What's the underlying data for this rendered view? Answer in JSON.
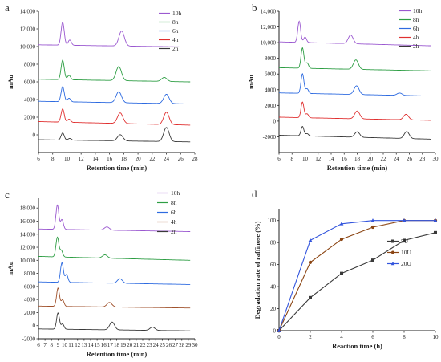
{
  "chart_data": [
    {
      "id": "a",
      "panel_label": "a",
      "type": "line",
      "xlabel": "Retention time (min)",
      "ylabel": "mAu",
      "xlim": [
        6,
        28
      ],
      "xticks": [
        6,
        8,
        10,
        12,
        14,
        16,
        18,
        20,
        22,
        24,
        26,
        28
      ],
      "ylim": [
        -2000,
        14000
      ],
      "yticks": [
        0,
        2000,
        4000,
        6000,
        8000,
        10000,
        12000,
        14000
      ],
      "ytick_labels": [
        "0",
        "2000",
        "4000",
        "6000",
        "8000",
        "10,000",
        "12,000",
        "14,000"
      ],
      "legend_position": "top-right",
      "series": [
        {
          "name": "10h",
          "color": "#9b59d0",
          "baseline": 10200,
          "end": 9950,
          "peaks": [
            [
              9.4,
              2600
            ],
            [
              10.4,
              600
            ],
            [
              17.7,
              1700
            ]
          ]
        },
        {
          "name": "8h",
          "color": "#2e9e44",
          "baseline": 6300,
          "end": 6000,
          "peaks": [
            [
              9.4,
              2200
            ],
            [
              10.3,
              500
            ],
            [
              17.3,
              1600
            ],
            [
              23.7,
              450
            ]
          ]
        },
        {
          "name": "6h",
          "color": "#2e6be0",
          "baseline": 3800,
          "end": 3500,
          "peaks": [
            [
              9.4,
              1700
            ],
            [
              10.3,
              400
            ],
            [
              17.3,
              1250
            ],
            [
              24.0,
              1050
            ]
          ]
        },
        {
          "name": "4h",
          "color": "#e03030",
          "baseline": 1500,
          "end": 1100,
          "peaks": [
            [
              9.4,
              1500
            ],
            [
              10.3,
              350
            ],
            [
              17.5,
              1200
            ],
            [
              24.0,
              1400
            ]
          ]
        },
        {
          "name": "2h",
          "color": "#3a3a3a",
          "baseline": -550,
          "end": -800,
          "peaks": [
            [
              9.4,
              800
            ],
            [
              10.4,
              200
            ],
            [
              17.5,
              700
            ],
            [
              24.0,
              1600
            ]
          ]
        }
      ]
    },
    {
      "id": "b",
      "panel_label": "b",
      "type": "line",
      "xlabel": "Retention time (min)",
      "ylabel": "mAu",
      "xlim": [
        6,
        30
      ],
      "xticks": [
        6,
        8,
        10,
        12,
        14,
        16,
        18,
        20,
        22,
        24,
        26,
        28,
        30
      ],
      "ylim": [
        -4000,
        14000
      ],
      "yticks": [
        -2000,
        0,
        2000,
        4000,
        6000,
        8000,
        10000,
        12000,
        14000
      ],
      "ytick_labels": [
        "-2000",
        "0",
        "2000",
        "4000",
        "6000",
        "8000",
        "10,000",
        "12,000",
        "14,000"
      ],
      "legend_position": "top-right",
      "series": [
        {
          "name": "10h",
          "color": "#9b59d0",
          "baseline": 10100,
          "end": 9600,
          "peaks": [
            [
              9.1,
              2700
            ],
            [
              10.0,
              700
            ],
            [
              17.0,
              1100
            ]
          ]
        },
        {
          "name": "8h",
          "color": "#2e9e44",
          "baseline": 6800,
          "end": 6400,
          "peaks": [
            [
              9.6,
              2600
            ],
            [
              10.3,
              700
            ],
            [
              17.8,
              1200
            ]
          ]
        },
        {
          "name": "6h",
          "color": "#2e6be0",
          "baseline": 3600,
          "end": 3200,
          "peaks": [
            [
              9.6,
              2500
            ],
            [
              10.3,
              600
            ],
            [
              17.9,
              1100
            ],
            [
              24.5,
              300
            ]
          ]
        },
        {
          "name": "4h",
          "color": "#e03030",
          "baseline": 500,
          "end": 100,
          "peaks": [
            [
              9.6,
              2000
            ],
            [
              10.3,
              500
            ],
            [
              18.0,
              1000
            ],
            [
              25.5,
              700
            ]
          ]
        },
        {
          "name": "2h",
          "color": "#3a3a3a",
          "baseline": -1800,
          "end": -2300,
          "peaks": [
            [
              9.6,
              1200
            ],
            [
              10.3,
              300
            ],
            [
              18.0,
              700
            ],
            [
              25.6,
              900
            ]
          ]
        }
      ]
    },
    {
      "id": "c",
      "panel_label": "c",
      "type": "line",
      "xlabel": "Retention time (min)",
      "ylabel": "mAu",
      "xlim": [
        6,
        30
      ],
      "xticks": [
        6,
        7,
        8,
        9,
        10,
        11,
        12,
        13,
        14,
        15,
        16,
        17,
        18,
        19,
        20,
        21,
        22,
        23,
        24,
        25,
        26,
        27,
        28,
        29,
        30
      ],
      "ylim": [
        -2000,
        19500
      ],
      "yticks": [
        -2000,
        0,
        2000,
        4000,
        6000,
        8000,
        10000,
        12000,
        14000,
        16000,
        18000
      ],
      "ytick_labels": [
        "-2000",
        "0",
        "2000",
        "4000",
        "6000",
        "8000",
        "10,000",
        "12,000",
        "14,000",
        "16,000",
        "18,000"
      ],
      "legend_position": "top-right",
      "series": [
        {
          "name": "10h",
          "color": "#9b59d0",
          "baseline": 14800,
          "end": 14400,
          "peaks": [
            [
              8.9,
              3700
            ],
            [
              9.6,
              1500
            ],
            [
              16.5,
              500
            ]
          ]
        },
        {
          "name": "8h",
          "color": "#2e9e44",
          "baseline": 10600,
          "end": 10000,
          "peaks": [
            [
              8.9,
              3000
            ],
            [
              9.5,
              1000
            ],
            [
              16.2,
              500
            ]
          ]
        },
        {
          "name": "6h",
          "color": "#2e6be0",
          "baseline": 6700,
          "end": 6300,
          "peaks": [
            [
              9.6,
              3000
            ],
            [
              10.3,
              1200
            ],
            [
              18.5,
              700
            ]
          ]
        },
        {
          "name": "4h",
          "color": "#a0522d",
          "baseline": 3000,
          "end": 2700,
          "peaks": [
            [
              9.0,
              2800
            ],
            [
              9.7,
              1000
            ],
            [
              16.9,
              700
            ]
          ]
        },
        {
          "name": "2h",
          "color": "#3a3a3a",
          "baseline": -500,
          "end": -800,
          "peaks": [
            [
              9.0,
              2500
            ],
            [
              9.7,
              800
            ],
            [
              17.3,
              1200
            ],
            [
              23.5,
              500
            ]
          ]
        }
      ]
    },
    {
      "id": "d",
      "panel_label": "d",
      "type": "line",
      "xlabel": "Reaction time (h)",
      "ylabel": "Degradation rate of raffinose (%)",
      "xlim": [
        0,
        10
      ],
      "xticks": [
        0,
        2,
        4,
        6,
        8,
        10
      ],
      "ylim": [
        0,
        110
      ],
      "yticks": [
        0,
        20,
        40,
        60,
        80,
        100
      ],
      "ytick_labels": [
        "0",
        "20",
        "40",
        "60",
        "80",
        "100"
      ],
      "legend_position": "right",
      "x": [
        0,
        2,
        4,
        6,
        8,
        10
      ],
      "series": [
        {
          "name": "5U",
          "color": "#3a3a3a",
          "marker": "square",
          "values": [
            0,
            30,
            52,
            64,
            82,
            89
          ]
        },
        {
          "name": "10U",
          "color": "#8b4513",
          "marker": "circle",
          "values": [
            0,
            62,
            83,
            94,
            100,
            100
          ]
        },
        {
          "name": "20U",
          "color": "#3355dd",
          "marker": "triangle",
          "values": [
            0,
            82,
            97,
            100,
            100,
            100
          ]
        }
      ]
    }
  ]
}
